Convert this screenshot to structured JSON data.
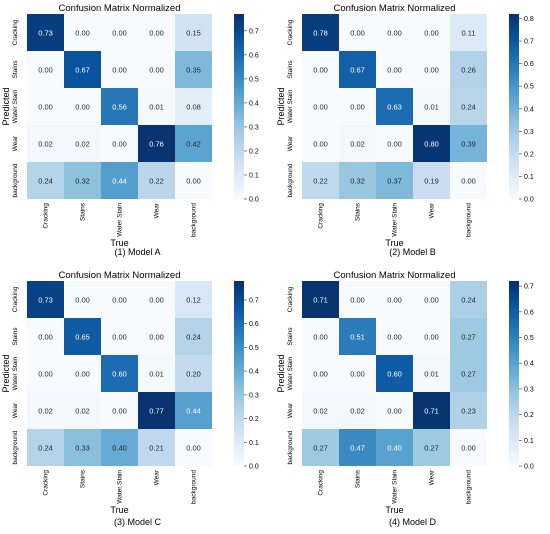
{
  "chart_data": [
    {
      "type": "heatmap",
      "title": "Confusion Matrix Normalized",
      "xlabel": "True",
      "ylabel": "Predicted",
      "caption": "(1) Model A",
      "x_categories": [
        "Cracking",
        "Stains",
        "Water Stain",
        "Wear",
        "background"
      ],
      "y_categories": [
        "Cracking",
        "Stains",
        "Water Stain",
        "Wear",
        "background"
      ],
      "values": [
        [
          0.73,
          0.0,
          0.0,
          0.0,
          0.15
        ],
        [
          0.0,
          0.67,
          0.0,
          0.0,
          0.35
        ],
        [
          0.0,
          0.0,
          0.56,
          0.01,
          0.08
        ],
        [
          0.02,
          0.02,
          0.0,
          0.76,
          0.42
        ],
        [
          0.24,
          0.32,
          0.44,
          0.22,
          0.0
        ]
      ],
      "colorbar": {
        "min": 0.0,
        "max": 0.77,
        "ticks": [
          "0.0",
          "0.1",
          "0.2",
          "0.3",
          "0.4",
          "0.5",
          "0.6",
          "0.7"
        ]
      }
    },
    {
      "type": "heatmap",
      "title": "Confusion Matrix Normalized",
      "xlabel": "True",
      "ylabel": "Predicted",
      "caption": "(2) Model B",
      "x_categories": [
        "Cracking",
        "Stains",
        "Water Stain",
        "Wear",
        "background"
      ],
      "y_categories": [
        "Cracking",
        "Stains",
        "Water Stain",
        "Wear",
        "background"
      ],
      "values": [
        [
          0.78,
          0.0,
          0.0,
          0.0,
          0.11
        ],
        [
          0.0,
          0.67,
          0.0,
          0.0,
          0.26
        ],
        [
          0.0,
          0.0,
          0.63,
          0.01,
          0.24
        ],
        [
          0.0,
          0.02,
          0.0,
          0.8,
          0.39
        ],
        [
          0.22,
          0.32,
          0.37,
          0.19,
          0.0
        ]
      ],
      "colorbar": {
        "min": 0.0,
        "max": 0.82,
        "ticks": [
          "0.0",
          "0.1",
          "0.2",
          "0.3",
          "0.4",
          "0.5",
          "0.6",
          "0.7",
          "0.8"
        ]
      }
    },
    {
      "type": "heatmap",
      "title": "Confusion Matrix Normalized",
      "xlabel": "True",
      "ylabel": "Predicted",
      "caption": "(3) Model C",
      "x_categories": [
        "Cracking",
        "Stains",
        "Water Stain",
        "Wear",
        "background"
      ],
      "y_categories": [
        "Cracking",
        "Stains",
        "Water Stain",
        "Wear",
        "background"
      ],
      "values": [
        [
          0.73,
          0.0,
          0.0,
          0.0,
          0.12
        ],
        [
          0.0,
          0.65,
          0.0,
          0.0,
          0.24
        ],
        [
          0.0,
          0.0,
          0.6,
          0.01,
          0.2
        ],
        [
          0.02,
          0.02,
          0.0,
          0.77,
          0.44
        ],
        [
          0.24,
          0.33,
          0.4,
          0.21,
          0.0
        ]
      ],
      "colorbar": {
        "min": 0.0,
        "max": 0.78,
        "ticks": [
          "0.0",
          "0.1",
          "0.2",
          "0.3",
          "0.4",
          "0.5",
          "0.6",
          "0.7"
        ]
      }
    },
    {
      "type": "heatmap",
      "title": "Confusion Matrix Normalized",
      "xlabel": "True",
      "ylabel": "Predicted",
      "caption": "(4) Model D",
      "x_categories": [
        "Cracking",
        "Stains",
        "Water Stain",
        "Wear",
        "background"
      ],
      "y_categories": [
        "Cracking",
        "Stains",
        "Water Stain",
        "Wear",
        "background"
      ],
      "values": [
        [
          0.71,
          0.0,
          0.0,
          0.0,
          0.24
        ],
        [
          0.0,
          0.51,
          0.0,
          0.0,
          0.27
        ],
        [
          0.0,
          0.0,
          0.6,
          0.01,
          0.27
        ],
        [
          0.02,
          0.02,
          0.0,
          0.71,
          0.23
        ],
        [
          0.27,
          0.47,
          0.4,
          0.27,
          0.0
        ]
      ],
      "colorbar": {
        "min": 0.0,
        "max": 0.72,
        "ticks": [
          "0.0",
          "0.1",
          "0.2",
          "0.3",
          "0.4",
          "0.5",
          "0.6",
          "0.7"
        ]
      }
    }
  ],
  "colormap": {
    "name": "Blues",
    "stops": [
      "#f7fbff",
      "#deebf7",
      "#c6dbef",
      "#9ecae1",
      "#6baed6",
      "#4292c6",
      "#2171b5",
      "#08519c",
      "#08306b"
    ]
  }
}
